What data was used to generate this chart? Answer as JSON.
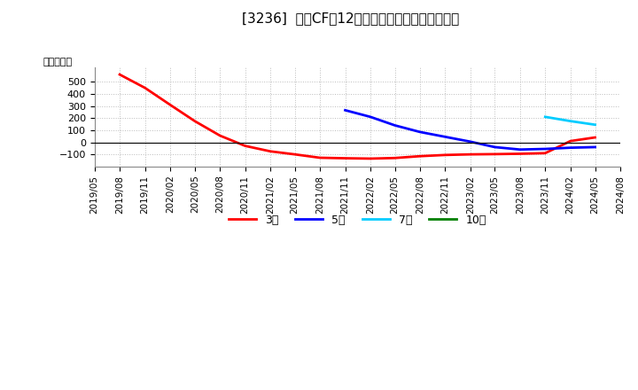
{
  "title": "[3236]  投資CFの12か月移動合計の平均値の推移",
  "ylabel": "（百万円）",
  "background_color": "#ffffff",
  "plot_bg_color": "#ffffff",
  "grid_color": "#aaaaaa",
  "series": {
    "3year": {
      "color": "#ff0000",
      "label": "3年",
      "dates": [
        "2019-08",
        "2019-11",
        "2020-02",
        "2020-05",
        "2020-08",
        "2020-11",
        "2021-02",
        "2021-05",
        "2021-08",
        "2021-11",
        "2022-02",
        "2022-05",
        "2022-08",
        "2022-11",
        "2023-02",
        "2023-05",
        "2023-08",
        "2023-11",
        "2024-02",
        "2024-05"
      ],
      "values": [
        560,
        450,
        310,
        175,
        55,
        -30,
        -75,
        -100,
        -128,
        -132,
        -135,
        -130,
        -115,
        -105,
        -100,
        -98,
        -95,
        -90,
        10,
        40
      ]
    },
    "5year": {
      "color": "#0000ff",
      "label": "5年",
      "dates": [
        "2021-11",
        "2022-02",
        "2022-05",
        "2022-08",
        "2022-11",
        "2023-02",
        "2023-05",
        "2023-08",
        "2023-11",
        "2024-02",
        "2024-05"
      ],
      "values": [
        265,
        210,
        140,
        85,
        45,
        5,
        -40,
        -60,
        -55,
        -45,
        -40
      ]
    },
    "7year": {
      "color": "#00ccff",
      "label": "7年",
      "dates": [
        "2023-11",
        "2024-02",
        "2024-05"
      ],
      "values": [
        210,
        175,
        145
      ]
    },
    "10year": {
      "color": "#008000",
      "label": "10年",
      "dates": [],
      "values": []
    }
  },
  "ylim": [
    -200,
    620
  ],
  "yticks": [
    -100,
    0,
    100,
    200,
    300,
    400,
    500
  ],
  "xstart": "2019-05",
  "xend": "2024-08"
}
